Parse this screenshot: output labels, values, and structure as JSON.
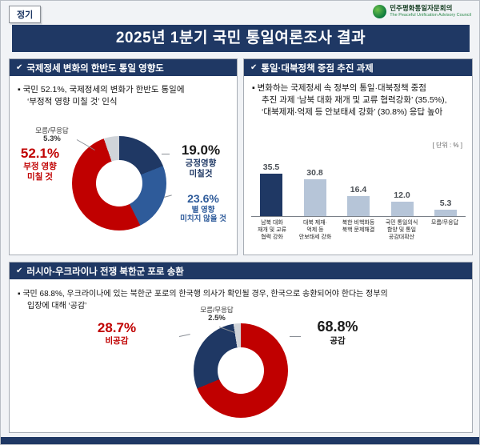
{
  "meta": {
    "badge": "정기"
  },
  "logo": {
    "org_kr": "민주평화통일자문회의",
    "org_en": "The Peaceful Unification Advisory Council"
  },
  "title": "2025년 1분기 국민 통일여론조사 결과",
  "colors": {
    "navy": "#1f3864",
    "red": "#c00000",
    "blue": "#2e5b9a",
    "bar_light": "#b6c5d8",
    "gray_slice": "#d0d4d9"
  },
  "panel_intl": {
    "header": "국제정세 변화의 한반도 통일 영향도",
    "desc1": "▪ 국민 52.1%, 국제정세의 변화가 한반도 통일에",
    "desc2": "‘부정적 영향 미칠 것’ 인식",
    "donut": {
      "unknown": {
        "label": "모름/무응답",
        "value": "5.3%"
      },
      "negative": {
        "value": "52.1%",
        "label1": "부정 영향",
        "label2": "미칠 것"
      },
      "positive": {
        "value": "19.0%",
        "label1": "긍정영향",
        "label2": "미칠것"
      },
      "neutral": {
        "value": "23.6%",
        "label1": "별 영향",
        "label2": "미치지 않을 것"
      }
    }
  },
  "panel_policy": {
    "header": "통일·대북정책 중점 추진 과제",
    "desc1": "▪ 변화하는 국제정세 속 정부의 통일·대북정책 중점",
    "desc2": "추진 과제 ‘남북 대화 재개 및 교류 협력강화’ (35.5%),",
    "desc3": "‘대북제재·억제 등 안보태세 강화’ (30.8%) 응답 높아",
    "unit": "[ 단위 : % ]",
    "values_display": [
      "35.5",
      "30.8",
      "16.4",
      "12.0",
      "5.3"
    ],
    "cats": [
      "남북 대화\n재개 및 교류\n협력 강화",
      "대북 제재·\n억제 등\n안보태세 강화",
      "북한 비핵화등\n북핵 문제해결",
      "국민 통일의식\n함양 및 통일\n공감대확산",
      "모름/무응답"
    ]
  },
  "panel_pow": {
    "header": "러시아-우크라이나 전쟁 북한군 포로 송환",
    "desc1": "▪ 국민 68.8%, 우크라이나에 있는 북한군 포로의 한국행 의사가 확인될 경우, 한국으로 송환되어야 한다는 정부의",
    "desc2": "입장에 대해 ‘공감’",
    "donut": {
      "unknown": {
        "label": "모름/무응답",
        "value": "2.5%"
      },
      "disagree": {
        "value": "28.7%",
        "label": "비공감"
      },
      "agree": {
        "value": "68.8%",
        "label": "공감"
      }
    }
  },
  "chart_data": [
    {
      "type": "pie",
      "title": "국제정세 변화의 한반도 통일 영향도",
      "unit": "%",
      "segments": [
        {
          "label": "긍정영향 미칠것",
          "value": 19.0,
          "color": "#1f3864"
        },
        {
          "label": "별 영향 미치지 않을 것",
          "value": 23.6,
          "color": "#2e5b9a"
        },
        {
          "label": "부정 영향 미칠 것",
          "value": 52.1,
          "color": "#c00000"
        },
        {
          "label": "모름/무응답",
          "value": 5.3,
          "color": "#d0d4d9"
        }
      ]
    },
    {
      "type": "bar",
      "title": "통일·대북정책 중점 추진 과제",
      "unit": "%",
      "categories": [
        "남북 대화 재개 및 교류 협력 강화",
        "대북 제재·억제 등 안보태세 강화",
        "북한 비핵화 등 북핵 문제해결",
        "국민 통일의식 함양 및 통일 공감대 확산",
        "모름/무응답"
      ],
      "values": [
        35.5,
        30.8,
        16.4,
        12.0,
        5.3
      ],
      "ylim": [
        0,
        40
      ],
      "bar_colors": [
        "#1f3864",
        "#b6c5d8",
        "#b6c5d8",
        "#b6c5d8",
        "#b6c5d8"
      ]
    },
    {
      "type": "pie",
      "title": "러시아-우크라이나 전쟁 북한군 포로 송환",
      "unit": "%",
      "segments": [
        {
          "label": "공감",
          "value": 68.8,
          "color": "#c00000"
        },
        {
          "label": "비공감",
          "value": 28.7,
          "color": "#1f3864"
        },
        {
          "label": "모름/무응답",
          "value": 2.5,
          "color": "#d0d4d9"
        }
      ]
    }
  ]
}
